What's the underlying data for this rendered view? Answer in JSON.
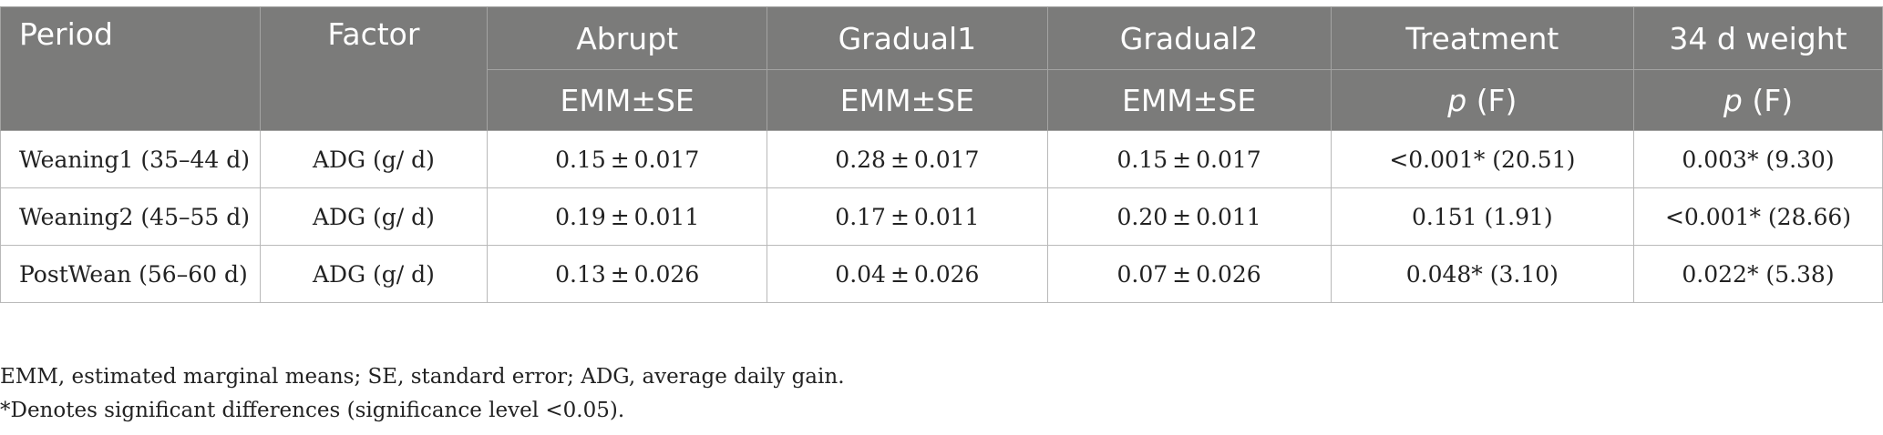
{
  "table": {
    "headers": {
      "period": "Period",
      "factor": "Factor",
      "groups": [
        "Abrupt",
        "Gradual1",
        "Gradual2"
      ],
      "treatment": "Treatment",
      "weight": "34 d weight",
      "stat_label": "EMM±SE",
      "p_label": "p",
      "f_label": "(F)"
    },
    "rows": [
      {
        "period": "Weaning1 (35–44 d)",
        "factor": "ADG (g/ d)",
        "abrupt": "0.15 ± 0.017",
        "gradual1": "0.28 ± 0.017",
        "gradual2": "0.15 ± 0.017",
        "treatment": "<0.001* (20.51)",
        "weight": "0.003* (9.30)"
      },
      {
        "period": "Weaning2 (45–55 d)",
        "factor": "ADG (g/ d)",
        "abrupt": "0.19 ± 0.011",
        "gradual1": "0.17 ± 0.011",
        "gradual2": "0.20 ± 0.011",
        "treatment": "0.151 (1.91)",
        "weight": "<0.001* (28.66)"
      },
      {
        "period": "PostWean (56–60 d)",
        "factor": "ADG (g/ d)",
        "abrupt": "0.13 ± 0.026",
        "gradual1": "0.04 ± 0.026",
        "gradual2": "0.07 ± 0.026",
        "treatment": "0.048* (3.10)",
        "weight": "0.022* (5.38)"
      }
    ]
  },
  "footnotes": [
    "EMM, estimated marginal means; SE, standard error; ADG, average daily gain.",
    "*Denotes significant differences (significance level <0.05)."
  ],
  "colors": {
    "header_bg": "#7b7b7a",
    "header_text": "#ffffff",
    "grid": "#b9b9b9"
  }
}
